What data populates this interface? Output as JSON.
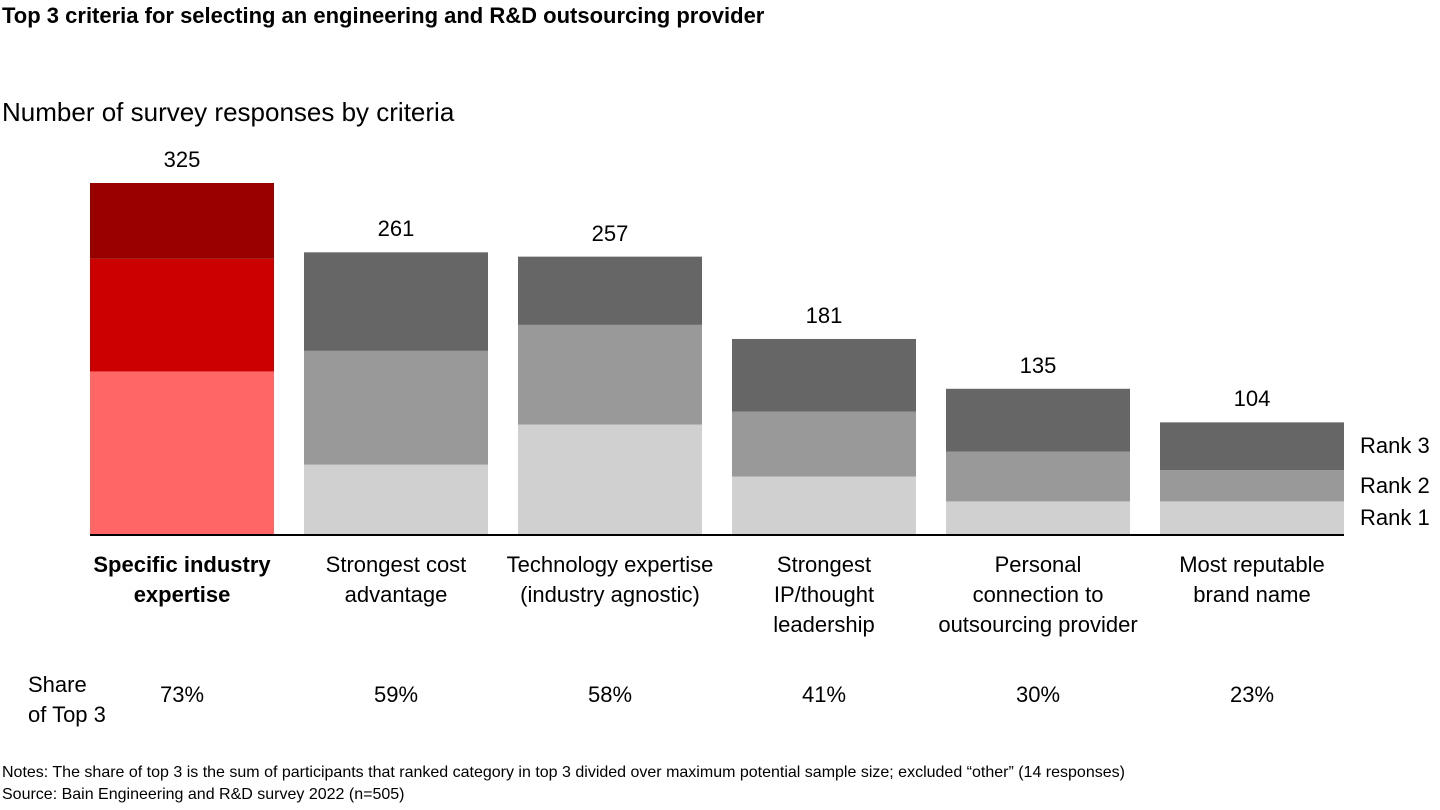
{
  "title": "Top 3 criteria for selecting an engineering and R&D outsourcing provider",
  "notes": "Notes: The share of top 3 is the sum of participants that ranked category in top 3 divided over maximum potential sample size; excluded “other” (14 responses)",
  "source": "Source: Bain Engineering and R&D survey 2022 (n=505)",
  "chart_data": {
    "type": "bar",
    "stacked": true,
    "subtitle": "Number of survey responses by criteria",
    "categories": [
      "Specific industry\nexpertise",
      "Strongest cost\nadvantage",
      "Technology expertise\n(industry agnostic)",
      "Strongest\nIP/thought\nleadership",
      "Personal\nconnection to\noutsourcing provider",
      "Most reputable\nbrand name"
    ],
    "highlight_index": 0,
    "series": [
      {
        "name": "Rank 1",
        "color": "#d0d0d0",
        "highlight_color": "#ff6666",
        "values": [
          151,
          65,
          102,
          54,
          31,
          31
        ]
      },
      {
        "name": "Rank 2",
        "color": "#999999",
        "highlight_color": "#cc0000",
        "values": [
          104,
          105,
          92,
          60,
          46,
          29
        ]
      },
      {
        "name": "Rank 3",
        "color": "#666666",
        "highlight_color": "#990000",
        "values": [
          70,
          91,
          63,
          67,
          58,
          44
        ]
      }
    ],
    "totals": [
      325,
      261,
      257,
      181,
      135,
      104
    ],
    "share_label": "Share\nof Top 3",
    "shares": {
      "values": [
        73,
        59,
        58,
        41,
        30,
        23
      ],
      "value_labels": [
        "73%",
        "59%",
        "58%",
        "41%",
        "30%",
        "23%"
      ]
    }
  }
}
